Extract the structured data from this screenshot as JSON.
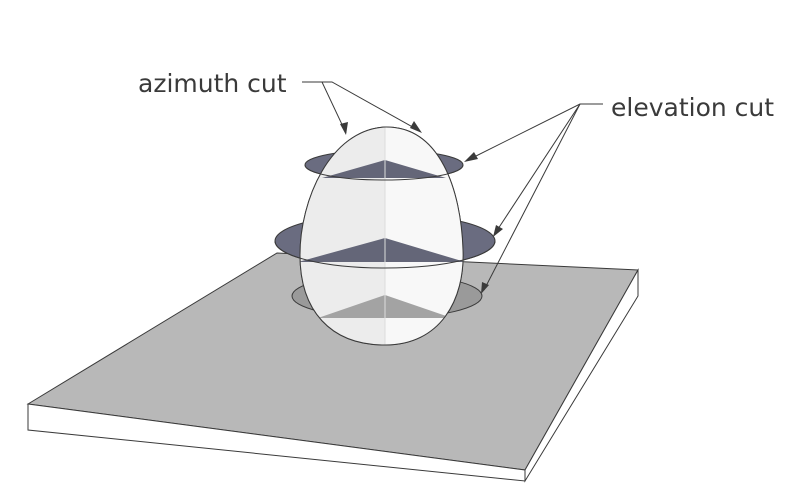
{
  "labels": {
    "azimuth": "azimuth cut",
    "elevation": "elevation cut"
  },
  "colors": {
    "background": "#ffffff",
    "plate_top": "#b8b8b8",
    "plate_side": "#ffffff",
    "cut_plane": "#6a6c80",
    "shadow_disc": "#9a9a9a",
    "egg_light": "#f7f7f7",
    "egg_mid": "#ececec",
    "outline": "#3a3a3a"
  }
}
